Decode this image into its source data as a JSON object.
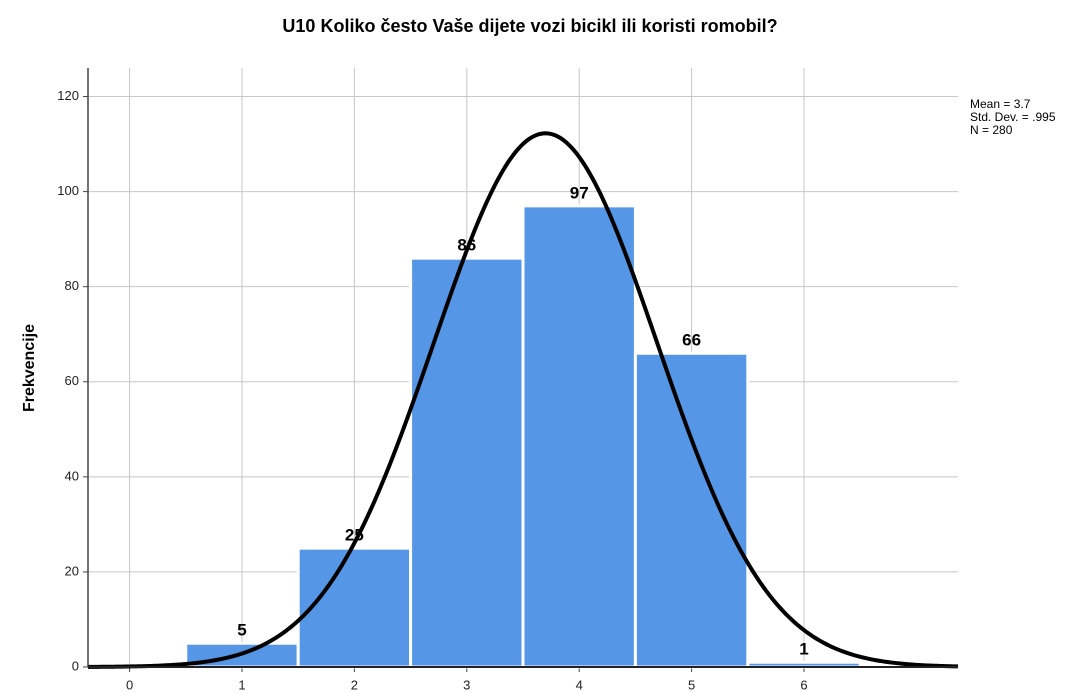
{
  "chart_data": {
    "type": "histogram",
    "title": "U10 Koliko često Vaše dijete vozi bicikl ili koristi romobil?",
    "y_label": "Frekvencije",
    "bins": [
      0.5,
      1.5,
      2.5,
      3.5,
      4.5,
      5.5,
      6.5
    ],
    "counts": [
      5,
      25,
      86,
      97,
      66,
      1
    ],
    "color": "#5596e6",
    "xlim": [
      -0.37,
      7.37
    ],
    "xticks": [
      0,
      1,
      2,
      3,
      4,
      5,
      6
    ],
    "ylim": [
      0,
      126
    ],
    "yticks": [
      0,
      20,
      40,
      60,
      80,
      100,
      120
    ],
    "grid": true,
    "annotations": [
      "Mean = 3.7",
      "Std. Dev. = .995",
      "N = 280"
    ],
    "normal_curve": {
      "mean": 3.7,
      "sd": 0.995,
      "n": 280,
      "color": "#000000"
    }
  }
}
